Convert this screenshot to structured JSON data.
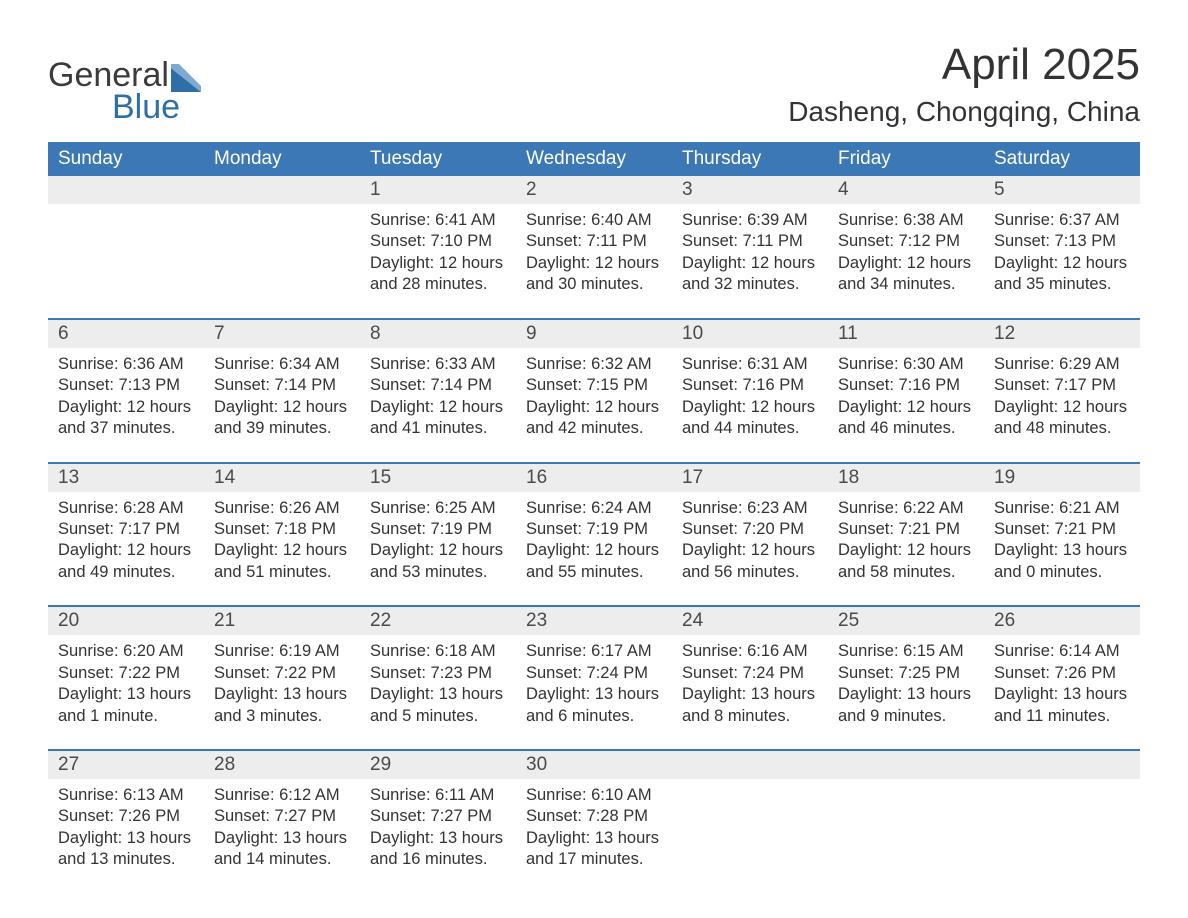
{
  "brand": {
    "part1": "General",
    "part2": "Blue",
    "logo_color": "#2f6fa7"
  },
  "title": "April 2025",
  "subtitle": "Dasheng, Chongqing, China",
  "colors": {
    "header_bg": "#3b78b5",
    "header_fg": "#ffffff",
    "daynum_bg": "#ededed",
    "text": "#333333",
    "week_divider": "#3b78b5",
    "background": "#ffffff"
  },
  "typography": {
    "title_fontsize": 44,
    "subtitle_fontsize": 28,
    "dow_fontsize": 19,
    "daynum_fontsize": 19,
    "body_fontsize": 16.5
  },
  "days_of_week": [
    "Sunday",
    "Monday",
    "Tuesday",
    "Wednesday",
    "Thursday",
    "Friday",
    "Saturday"
  ],
  "weeks": [
    [
      null,
      null,
      {
        "n": "1",
        "sunrise": "Sunrise: 6:41 AM",
        "sunset": "Sunset: 7:10 PM",
        "d1": "Daylight: 12 hours",
        "d2": "and 28 minutes."
      },
      {
        "n": "2",
        "sunrise": "Sunrise: 6:40 AM",
        "sunset": "Sunset: 7:11 PM",
        "d1": "Daylight: 12 hours",
        "d2": "and 30 minutes."
      },
      {
        "n": "3",
        "sunrise": "Sunrise: 6:39 AM",
        "sunset": "Sunset: 7:11 PM",
        "d1": "Daylight: 12 hours",
        "d2": "and 32 minutes."
      },
      {
        "n": "4",
        "sunrise": "Sunrise: 6:38 AM",
        "sunset": "Sunset: 7:12 PM",
        "d1": "Daylight: 12 hours",
        "d2": "and 34 minutes."
      },
      {
        "n": "5",
        "sunrise": "Sunrise: 6:37 AM",
        "sunset": "Sunset: 7:13 PM",
        "d1": "Daylight: 12 hours",
        "d2": "and 35 minutes."
      }
    ],
    [
      {
        "n": "6",
        "sunrise": "Sunrise: 6:36 AM",
        "sunset": "Sunset: 7:13 PM",
        "d1": "Daylight: 12 hours",
        "d2": "and 37 minutes."
      },
      {
        "n": "7",
        "sunrise": "Sunrise: 6:34 AM",
        "sunset": "Sunset: 7:14 PM",
        "d1": "Daylight: 12 hours",
        "d2": "and 39 minutes."
      },
      {
        "n": "8",
        "sunrise": "Sunrise: 6:33 AM",
        "sunset": "Sunset: 7:14 PM",
        "d1": "Daylight: 12 hours",
        "d2": "and 41 minutes."
      },
      {
        "n": "9",
        "sunrise": "Sunrise: 6:32 AM",
        "sunset": "Sunset: 7:15 PM",
        "d1": "Daylight: 12 hours",
        "d2": "and 42 minutes."
      },
      {
        "n": "10",
        "sunrise": "Sunrise: 6:31 AM",
        "sunset": "Sunset: 7:16 PM",
        "d1": "Daylight: 12 hours",
        "d2": "and 44 minutes."
      },
      {
        "n": "11",
        "sunrise": "Sunrise: 6:30 AM",
        "sunset": "Sunset: 7:16 PM",
        "d1": "Daylight: 12 hours",
        "d2": "and 46 minutes."
      },
      {
        "n": "12",
        "sunrise": "Sunrise: 6:29 AM",
        "sunset": "Sunset: 7:17 PM",
        "d1": "Daylight: 12 hours",
        "d2": "and 48 minutes."
      }
    ],
    [
      {
        "n": "13",
        "sunrise": "Sunrise: 6:28 AM",
        "sunset": "Sunset: 7:17 PM",
        "d1": "Daylight: 12 hours",
        "d2": "and 49 minutes."
      },
      {
        "n": "14",
        "sunrise": "Sunrise: 6:26 AM",
        "sunset": "Sunset: 7:18 PM",
        "d1": "Daylight: 12 hours",
        "d2": "and 51 minutes."
      },
      {
        "n": "15",
        "sunrise": "Sunrise: 6:25 AM",
        "sunset": "Sunset: 7:19 PM",
        "d1": "Daylight: 12 hours",
        "d2": "and 53 minutes."
      },
      {
        "n": "16",
        "sunrise": "Sunrise: 6:24 AM",
        "sunset": "Sunset: 7:19 PM",
        "d1": "Daylight: 12 hours",
        "d2": "and 55 minutes."
      },
      {
        "n": "17",
        "sunrise": "Sunrise: 6:23 AM",
        "sunset": "Sunset: 7:20 PM",
        "d1": "Daylight: 12 hours",
        "d2": "and 56 minutes."
      },
      {
        "n": "18",
        "sunrise": "Sunrise: 6:22 AM",
        "sunset": "Sunset: 7:21 PM",
        "d1": "Daylight: 12 hours",
        "d2": "and 58 minutes."
      },
      {
        "n": "19",
        "sunrise": "Sunrise: 6:21 AM",
        "sunset": "Sunset: 7:21 PM",
        "d1": "Daylight: 13 hours",
        "d2": "and 0 minutes."
      }
    ],
    [
      {
        "n": "20",
        "sunrise": "Sunrise: 6:20 AM",
        "sunset": "Sunset: 7:22 PM",
        "d1": "Daylight: 13 hours",
        "d2": "and 1 minute."
      },
      {
        "n": "21",
        "sunrise": "Sunrise: 6:19 AM",
        "sunset": "Sunset: 7:22 PM",
        "d1": "Daylight: 13 hours",
        "d2": "and 3 minutes."
      },
      {
        "n": "22",
        "sunrise": "Sunrise: 6:18 AM",
        "sunset": "Sunset: 7:23 PM",
        "d1": "Daylight: 13 hours",
        "d2": "and 5 minutes."
      },
      {
        "n": "23",
        "sunrise": "Sunrise: 6:17 AM",
        "sunset": "Sunset: 7:24 PM",
        "d1": "Daylight: 13 hours",
        "d2": "and 6 minutes."
      },
      {
        "n": "24",
        "sunrise": "Sunrise: 6:16 AM",
        "sunset": "Sunset: 7:24 PM",
        "d1": "Daylight: 13 hours",
        "d2": "and 8 minutes."
      },
      {
        "n": "25",
        "sunrise": "Sunrise: 6:15 AM",
        "sunset": "Sunset: 7:25 PM",
        "d1": "Daylight: 13 hours",
        "d2": "and 9 minutes."
      },
      {
        "n": "26",
        "sunrise": "Sunrise: 6:14 AM",
        "sunset": "Sunset: 7:26 PM",
        "d1": "Daylight: 13 hours",
        "d2": "and 11 minutes."
      }
    ],
    [
      {
        "n": "27",
        "sunrise": "Sunrise: 6:13 AM",
        "sunset": "Sunset: 7:26 PM",
        "d1": "Daylight: 13 hours",
        "d2": "and 13 minutes."
      },
      {
        "n": "28",
        "sunrise": "Sunrise: 6:12 AM",
        "sunset": "Sunset: 7:27 PM",
        "d1": "Daylight: 13 hours",
        "d2": "and 14 minutes."
      },
      {
        "n": "29",
        "sunrise": "Sunrise: 6:11 AM",
        "sunset": "Sunset: 7:27 PM",
        "d1": "Daylight: 13 hours",
        "d2": "and 16 minutes."
      },
      {
        "n": "30",
        "sunrise": "Sunrise: 6:10 AM",
        "sunset": "Sunset: 7:28 PM",
        "d1": "Daylight: 13 hours",
        "d2": "and 17 minutes."
      },
      null,
      null,
      null
    ]
  ]
}
